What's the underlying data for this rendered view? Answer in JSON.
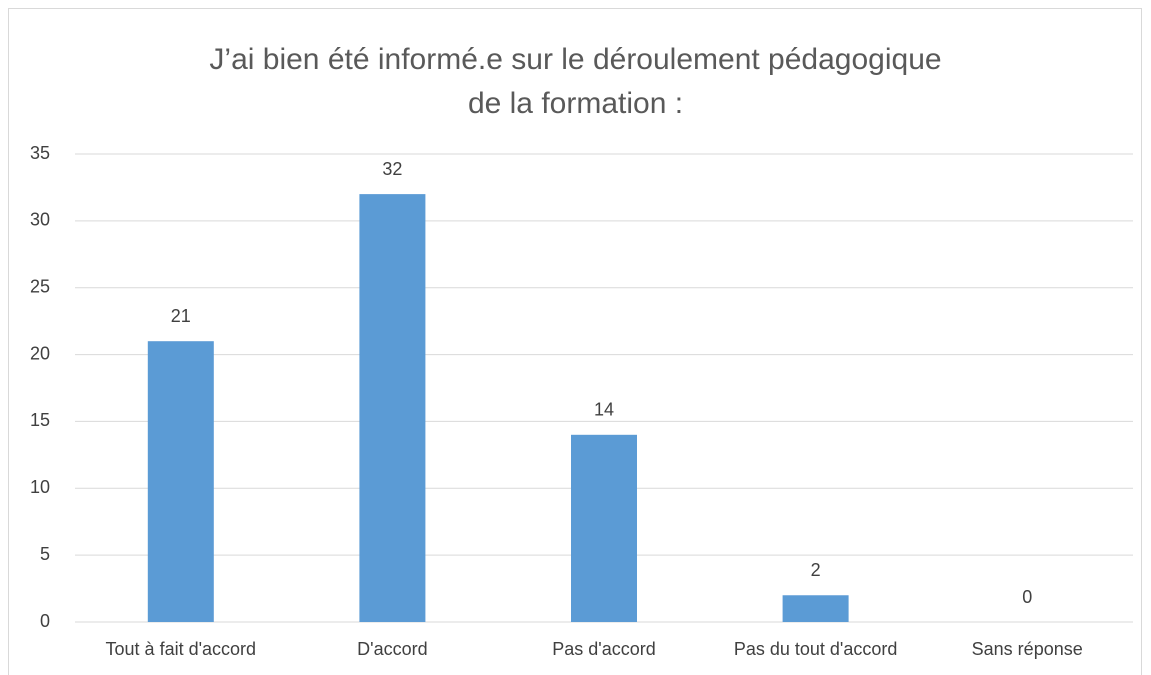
{
  "chart_data": {
    "type": "bar",
    "title": "J’ai bien été informé.e sur le déroulement pédagogique de la formation :",
    "categories": [
      "Tout à fait d'accord",
      "D'accord",
      "Pas d'accord",
      "Pas du tout d'accord",
      "Sans réponse"
    ],
    "values": [
      21,
      32,
      14,
      2,
      0
    ],
    "color": "#5b9bd5",
    "ylim": [
      0,
      35
    ],
    "yticks": [
      0,
      5,
      10,
      15,
      20,
      25,
      30,
      35
    ],
    "grid": true
  }
}
